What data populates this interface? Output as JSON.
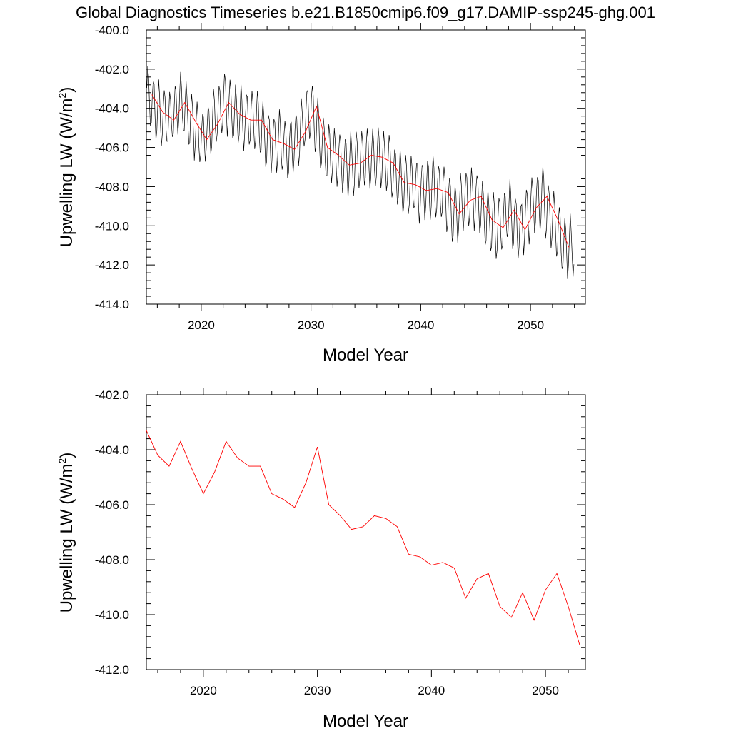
{
  "title": "Global Diagnostics Timeseries b.e21.B1850cmip6.f09_g17.DAMIP-ssp245-ghg.001",
  "colors": {
    "monthly": "#000000",
    "annual": "#ff0000",
    "background": "#ffffff"
  },
  "chart_data": [
    {
      "type": "line",
      "xlabel": "Model Year",
      "ylabel": "Upwelling LW (W/m",
      "ylabel_sup": "2",
      "ylabel_close": ")",
      "xlim": [
        2015.0,
        2055.0
      ],
      "ylim": [
        -414.0,
        -400.0
      ],
      "xticks": [
        2020,
        2030,
        2040,
        2050
      ],
      "yticks": [
        -414.0,
        -412.0,
        -410.0,
        -408.0,
        -406.0,
        -404.0,
        -402.0,
        -400.0
      ],
      "ytick_labels": [
        "-414.0",
        "-412.0",
        "-410.0",
        "-408.0",
        "-406.0",
        "-404.0",
        "-402.0",
        "-400.0"
      ],
      "grid": false,
      "series": [
        {
          "kind": "monthly",
          "color": "#000000",
          "x_start": 2015.04,
          "x_step": 0.08333,
          "seasonal_amplitude": 1.6,
          "annual_means": [
            -403.3,
            -404.2,
            -404.6,
            -403.7,
            -404.7,
            -405.6,
            -404.8,
            -403.7,
            -404.3,
            -404.6,
            -404.6,
            -405.6,
            -405.8,
            -406.1,
            -405.2,
            -403.9,
            -406.0,
            -406.4,
            -406.9,
            -406.8,
            -406.4,
            -406.5,
            -406.8,
            -407.8,
            -407.9,
            -408.2,
            -408.1,
            -408.3,
            -409.4,
            -408.7,
            -408.5,
            -409.7,
            -410.1,
            -409.2,
            -410.2,
            -409.1,
            -408.5,
            -409.7,
            -411.1
          ]
        },
        {
          "kind": "annual",
          "color": "#ff0000",
          "x": [
            2015.5,
            2016.5,
            2017.5,
            2018.5,
            2019.5,
            2020.5,
            2021.5,
            2022.5,
            2023.5,
            2024.5,
            2025.5,
            2026.5,
            2027.5,
            2028.5,
            2029.5,
            2030.5,
            2031.5,
            2032.5,
            2033.5,
            2034.5,
            2035.5,
            2036.5,
            2037.5,
            2038.5,
            2039.5,
            2040.5,
            2041.5,
            2042.5,
            2043.5,
            2044.5,
            2045.5,
            2046.5,
            2047.5,
            2048.5,
            2049.5,
            2050.5,
            2051.5,
            2052.5,
            2053.5
          ],
          "y": [
            -403.3,
            -404.2,
            -404.6,
            -403.7,
            -404.7,
            -405.6,
            -404.8,
            -403.7,
            -404.3,
            -404.6,
            -404.6,
            -405.6,
            -405.8,
            -406.1,
            -405.2,
            -403.9,
            -406.0,
            -406.4,
            -406.9,
            -406.8,
            -406.4,
            -406.5,
            -406.8,
            -407.8,
            -407.9,
            -408.2,
            -408.1,
            -408.3,
            -409.4,
            -408.7,
            -408.5,
            -409.7,
            -410.1,
            -409.2,
            -410.2,
            -409.1,
            -408.5,
            -409.7,
            -411.1
          ]
        }
      ]
    },
    {
      "type": "line",
      "xlabel": "Model Year",
      "ylabel": "Upwelling LW (W/m",
      "ylabel_sup": "2",
      "ylabel_close": ")",
      "xlim": [
        2015.0,
        2053.5
      ],
      "ylim": [
        -412.0,
        -402.0
      ],
      "xticks": [
        2020,
        2030,
        2040,
        2050
      ],
      "yticks": [
        -412.0,
        -410.0,
        -408.0,
        -406.0,
        -404.0,
        -402.0
      ],
      "ytick_labels": [
        "-412.0",
        "-410.0",
        "-408.0",
        "-406.0",
        "-404.0",
        "-402.0"
      ],
      "grid": false,
      "series": [
        {
          "kind": "annual",
          "color": "#ff0000",
          "x": [
            2015.0,
            2016.0,
            2017.0,
            2018.0,
            2019.0,
            2020.0,
            2021.0,
            2022.0,
            2023.0,
            2024.0,
            2025.0,
            2026.0,
            2027.0,
            2028.0,
            2029.0,
            2030.0,
            2031.0,
            2032.0,
            2033.0,
            2034.0,
            2035.0,
            2036.0,
            2037.0,
            2038.0,
            2039.0,
            2040.0,
            2041.0,
            2042.0,
            2043.0,
            2044.0,
            2045.0,
            2046.0,
            2047.0,
            2048.0,
            2049.0,
            2050.0,
            2051.0,
            2052.0,
            2053.0,
            2053.5
          ],
          "y": [
            -403.3,
            -404.2,
            -404.6,
            -403.7,
            -404.7,
            -405.6,
            -404.8,
            -403.7,
            -404.3,
            -404.6,
            -404.6,
            -405.6,
            -405.8,
            -406.1,
            -405.2,
            -403.9,
            -406.0,
            -406.4,
            -406.9,
            -406.8,
            -406.4,
            -406.5,
            -406.8,
            -407.8,
            -407.9,
            -408.2,
            -408.1,
            -408.3,
            -409.4,
            -408.7,
            -408.5,
            -409.7,
            -410.1,
            -409.2,
            -410.2,
            -409.1,
            -408.5,
            -409.7,
            -411.1,
            -411.1
          ]
        }
      ]
    }
  ]
}
